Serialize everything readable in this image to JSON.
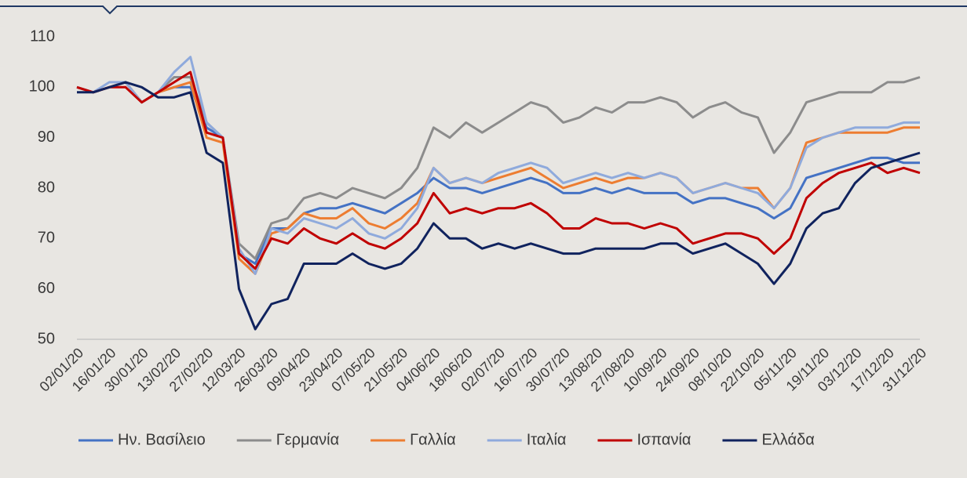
{
  "chart_data": {
    "type": "line",
    "categories": [
      "02/01/20",
      null,
      "16/01/20",
      null,
      "30/01/20",
      null,
      "13/02/20",
      null,
      "27/02/20",
      null,
      "12/03/20",
      null,
      "26/03/20",
      null,
      "09/04/20",
      null,
      "23/04/20",
      null,
      "07/05/20",
      null,
      "21/05/20",
      null,
      "04/06/20",
      null,
      "18/06/20",
      null,
      "02/07/20",
      null,
      "16/07/20",
      null,
      "30/07/20",
      null,
      "13/08/20",
      null,
      "27/08/20",
      null,
      "10/09/20",
      null,
      "24/09/20",
      null,
      "08/10/20",
      null,
      "22/10/20",
      null,
      "05/11/20",
      null,
      "19/11/20",
      null,
      "03/12/20",
      null,
      "17/12/20",
      null,
      "31/12/20"
    ],
    "ylim": [
      50,
      110
    ],
    "yticks": [
      50,
      60,
      70,
      80,
      90,
      100,
      110
    ],
    "series": [
      {
        "name": "Ην. Βασίλειο",
        "color": "#4472c4",
        "values": [
          100,
          99,
          100,
          101,
          97,
          99,
          100,
          100,
          92,
          90,
          67,
          65,
          72,
          72,
          75,
          76,
          76,
          77,
          76,
          75,
          77,
          79,
          82,
          80,
          80,
          79,
          80,
          81,
          82,
          81,
          79,
          79,
          80,
          79,
          80,
          79,
          79,
          79,
          77,
          78,
          78,
          77,
          76,
          74,
          76,
          82,
          83,
          84,
          85,
          86,
          86,
          85,
          85
        ]
      },
      {
        "name": "Γερμανία",
        "color": "#8c8c8c",
        "values": [
          100,
          99,
          100,
          101,
          97,
          99,
          102,
          102,
          93,
          90,
          69,
          66,
          73,
          74,
          78,
          79,
          78,
          80,
          79,
          78,
          80,
          84,
          92,
          90,
          93,
          91,
          93,
          95,
          97,
          96,
          93,
          94,
          96,
          95,
          97,
          97,
          98,
          97,
          94,
          96,
          97,
          95,
          94,
          87,
          91,
          97,
          98,
          99,
          99,
          99,
          101,
          101,
          102
        ]
      },
      {
        "name": "Γαλλία",
        "color": "#ed7d31",
        "values": [
          100,
          99,
          100,
          101,
          97,
          99,
          100,
          101,
          90,
          89,
          66,
          63,
          71,
          72,
          75,
          74,
          74,
          76,
          73,
          72,
          74,
          77,
          84,
          81,
          82,
          81,
          82,
          83,
          84,
          82,
          80,
          81,
          82,
          81,
          82,
          82,
          83,
          82,
          79,
          80,
          81,
          80,
          80,
          76,
          80,
          89,
          90,
          91,
          91,
          91,
          91,
          92,
          92
        ]
      },
      {
        "name": "Ιταλία",
        "color": "#8faadc",
        "values": [
          100,
          99,
          101,
          101,
          97,
          99,
          103,
          106,
          93,
          90,
          68,
          63,
          72,
          71,
          74,
          73,
          72,
          74,
          71,
          70,
          72,
          76,
          84,
          81,
          82,
          81,
          83,
          84,
          85,
          84,
          81,
          82,
          83,
          82,
          83,
          82,
          83,
          82,
          79,
          80,
          81,
          80,
          79,
          76,
          80,
          88,
          90,
          91,
          92,
          92,
          92,
          93,
          93
        ]
      },
      {
        "name": "Ισπανία",
        "color": "#c00000",
        "values": [
          100,
          99,
          100,
          100,
          97,
          99,
          101,
          103,
          91,
          90,
          67,
          64,
          70,
          69,
          72,
          70,
          69,
          71,
          69,
          68,
          70,
          73,
          79,
          75,
          76,
          75,
          76,
          76,
          77,
          75,
          72,
          72,
          74,
          73,
          73,
          72,
          73,
          72,
          69,
          70,
          71,
          71,
          70,
          67,
          70,
          78,
          81,
          83,
          84,
          85,
          83,
          84,
          83
        ]
      },
      {
        "name": "Ελλάδα",
        "color": "#10235e",
        "values": [
          99,
          99,
          100,
          101,
          100,
          98,
          98,
          99,
          87,
          85,
          60,
          52,
          57,
          58,
          65,
          65,
          65,
          67,
          65,
          64,
          65,
          68,
          73,
          70,
          70,
          68,
          69,
          68,
          69,
          68,
          67,
          67,
          68,
          68,
          68,
          68,
          69,
          69,
          67,
          68,
          69,
          67,
          65,
          61,
          65,
          72,
          75,
          76,
          81,
          84,
          85,
          86,
          87
        ]
      }
    ]
  }
}
